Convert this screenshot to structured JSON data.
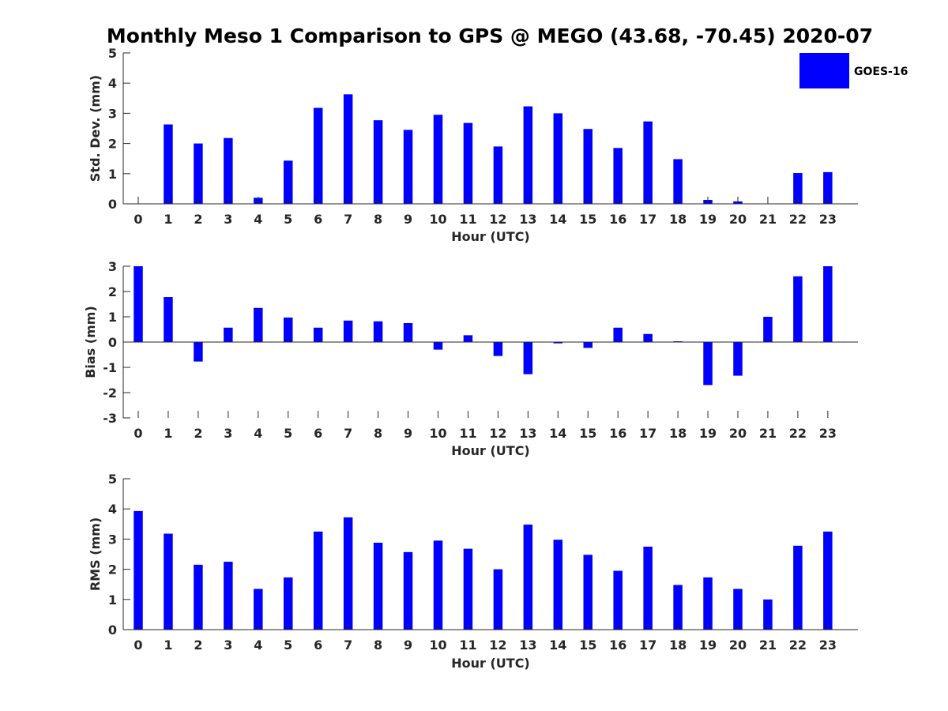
{
  "title": "Monthly Meso 1 Comparison to GPS @ MEGO (43.68, -70.45) 2020-07",
  "legend": {
    "label": "GOES-16",
    "color": "#0000ff",
    "placement": "top-right"
  },
  "chart_data": [
    {
      "type": "bar",
      "xlabel": "Hour (UTC)",
      "ylabel": "Std. Dev. (mm)",
      "categories": [
        "0",
        "1",
        "2",
        "3",
        "4",
        "5",
        "6",
        "7",
        "8",
        "9",
        "10",
        "11",
        "12",
        "13",
        "14",
        "15",
        "16",
        "17",
        "18",
        "19",
        "20",
        "21",
        "22",
        "23"
      ],
      "series": [
        {
          "name": "GOES-16",
          "values": [
            0,
            2.63,
            2.0,
            2.18,
            0.2,
            1.43,
            3.18,
            3.63,
            2.77,
            2.45,
            2.95,
            2.68,
            1.9,
            3.23,
            3.0,
            2.48,
            1.85,
            2.73,
            1.48,
            0.13,
            0.08,
            0,
            1.02,
            1.05
          ]
        }
      ],
      "ylim": [
        0,
        5
      ],
      "yticks": [
        0,
        1,
        2,
        3,
        4,
        5
      ],
      "grid": false
    },
    {
      "type": "bar",
      "xlabel": "Hour (UTC)",
      "ylabel": "Bias (mm)",
      "categories": [
        "0",
        "1",
        "2",
        "3",
        "4",
        "5",
        "6",
        "7",
        "8",
        "9",
        "10",
        "11",
        "12",
        "13",
        "14",
        "15",
        "16",
        "17",
        "18",
        "19",
        "20",
        "21",
        "22",
        "23"
      ],
      "series": [
        {
          "name": "GOES-16",
          "values": [
            3.0,
            1.78,
            -0.77,
            0.57,
            1.35,
            0.97,
            0.57,
            0.85,
            0.82,
            0.75,
            -0.3,
            0.27,
            -0.55,
            -1.27,
            -0.05,
            -0.23,
            0.57,
            0.32,
            0.03,
            -1.7,
            -1.33,
            1.0,
            2.6,
            3.0
          ]
        }
      ],
      "ylim": [
        -3,
        3
      ],
      "yticks": [
        -3,
        -2,
        -1,
        0,
        1,
        2,
        3
      ],
      "grid": false
    },
    {
      "type": "bar",
      "xlabel": "Hour (UTC)",
      "ylabel": "RMS (mm)",
      "categories": [
        "0",
        "1",
        "2",
        "3",
        "4",
        "5",
        "6",
        "7",
        "8",
        "9",
        "10",
        "11",
        "12",
        "13",
        "14",
        "15",
        "16",
        "17",
        "18",
        "19",
        "20",
        "21",
        "22",
        "23"
      ],
      "series": [
        {
          "name": "GOES-16",
          "values": [
            3.93,
            3.18,
            2.15,
            2.25,
            1.35,
            1.73,
            3.25,
            3.72,
            2.88,
            2.57,
            2.95,
            2.68,
            2.0,
            3.48,
            2.98,
            2.48,
            1.95,
            2.75,
            1.48,
            1.73,
            1.35,
            1.0,
            2.78,
            3.25
          ]
        }
      ],
      "ylim": [
        0,
        5
      ],
      "yticks": [
        0,
        1,
        2,
        3,
        4,
        5
      ],
      "grid": false
    }
  ]
}
